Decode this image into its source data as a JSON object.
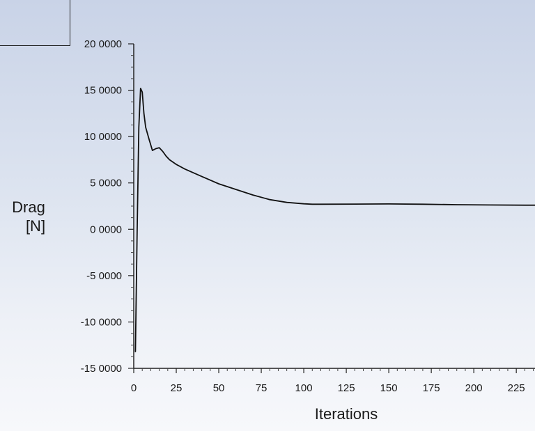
{
  "chart_data": {
    "type": "line",
    "title": "",
    "xlabel": "Iterations",
    "ylabel": "Drag",
    "ylabel_unit": "[N]",
    "xlim": [
      0,
      236
    ],
    "ylim": [
      -15,
      20
    ],
    "x_ticks": [
      0,
      25,
      50,
      75,
      100,
      125,
      150,
      175,
      200,
      225
    ],
    "x_tick_labels": [
      "0",
      "25",
      "50",
      "75",
      "100",
      "125",
      "150",
      "175",
      "200",
      "225"
    ],
    "y_ticks": [
      20,
      15,
      10,
      5,
      0,
      -5,
      -10,
      -15
    ],
    "y_tick_labels": [
      "20 0000",
      "15 0000",
      "10 0000",
      "5 0000",
      "0 0000",
      "-5 0000",
      "-10 0000",
      "-15 0000"
    ],
    "grid": false,
    "series": [
      {
        "name": "Drag",
        "color": "#111111",
        "x": [
          1,
          2,
          3,
          4,
          5,
          6,
          7,
          9,
          11,
          13,
          15,
          17,
          19,
          21,
          25,
          30,
          35,
          40,
          45,
          50,
          60,
          70,
          80,
          90,
          100,
          105,
          110,
          130,
          150,
          170,
          190,
          210,
          230,
          236
        ],
        "y": [
          -13.2,
          0,
          11,
          15.2,
          14.8,
          12.5,
          11,
          9.7,
          8.5,
          8.7,
          8.8,
          8.4,
          7.9,
          7.5,
          7.0,
          6.5,
          6.1,
          5.7,
          5.3,
          4.9,
          4.3,
          3.7,
          3.2,
          2.9,
          2.75,
          2.7,
          2.7,
          2.72,
          2.73,
          2.7,
          2.65,
          2.62,
          2.6,
          2.6
        ]
      }
    ]
  }
}
